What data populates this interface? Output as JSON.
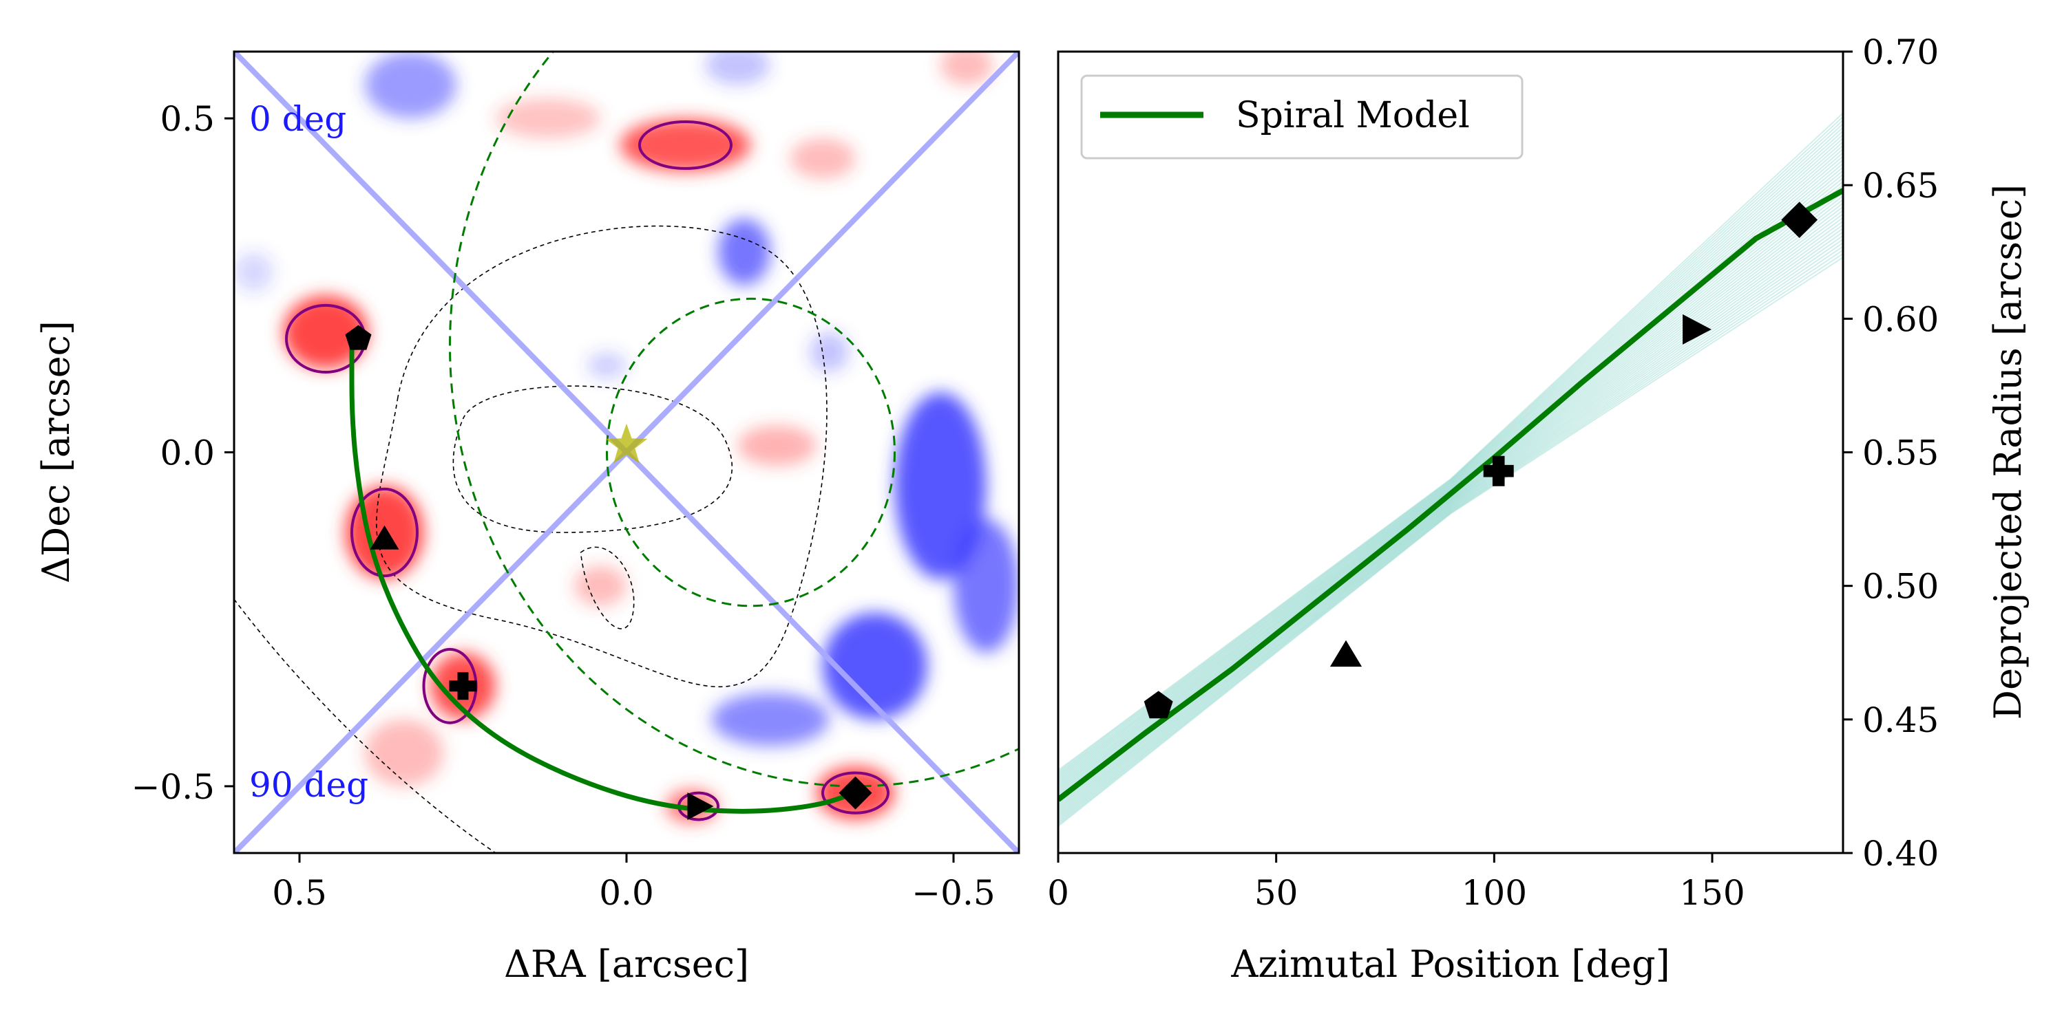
{
  "chart_data": [
    {
      "type": "image",
      "xlabel": "ΔRA [arcsec]",
      "ylabel": "ΔDec [arcsec]",
      "xlim": [
        0.6,
        -0.6
      ],
      "ylim": [
        -0.6,
        0.6
      ],
      "x_ticks": [
        {
          "v": 0.5,
          "label": "0.5"
        },
        {
          "v": 0.0,
          "label": "0.0"
        },
        {
          "v": -0.5,
          "label": "−0.5"
        }
      ],
      "y_ticks": [
        {
          "v": 0.5,
          "label": "0.5"
        },
        {
          "v": 0.0,
          "label": "0.0"
        },
        {
          "v": -0.5,
          "label": "−0.5"
        }
      ],
      "annotations": [
        {
          "text": "0 deg",
          "x": 0.58,
          "y": 0.48,
          "color": "#1a1aff"
        },
        {
          "text": "90 deg",
          "x": 0.58,
          "y": -0.52,
          "color": "#1a1aff"
        }
      ],
      "colors": {
        "positive": "#ff3b3b",
        "negative": "#3a3aff",
        "spiral": "#007d00",
        "ellipse": "#007d00",
        "contour": "#800080",
        "axis_lines": "#a8a8ff",
        "star": "#b5b500"
      },
      "star": {
        "x": 0.0,
        "y": 0.01
      },
      "diagonal_lines": [
        {
          "x1": 0.6,
          "y1": 0.6,
          "x2": -0.6,
          "y2": -0.6
        },
        {
          "x1": 0.6,
          "y1": -0.6,
          "x2": -0.6,
          "y2": 0.6
        }
      ],
      "positive_blobs": [
        {
          "x": 0.46,
          "y": 0.18,
          "rx": 0.065,
          "ry": 0.055,
          "a": 0.95
        },
        {
          "x": 0.37,
          "y": -0.12,
          "rx": 0.06,
          "ry": 0.07,
          "a": 0.95
        },
        {
          "x": 0.25,
          "y": -0.35,
          "rx": 0.05,
          "ry": 0.05,
          "a": 0.9
        },
        {
          "x": -0.09,
          "y": 0.46,
          "rx": 0.1,
          "ry": 0.04,
          "a": 0.85
        },
        {
          "x": -0.35,
          "y": -0.51,
          "rx": 0.06,
          "ry": 0.04,
          "a": 0.9
        },
        {
          "x": -0.1,
          "y": -0.53,
          "rx": 0.04,
          "ry": 0.025,
          "a": 0.7
        },
        {
          "x": 0.04,
          "y": -0.2,
          "rx": 0.04,
          "ry": 0.03,
          "a": 0.35
        },
        {
          "x": -0.23,
          "y": 0.01,
          "rx": 0.06,
          "ry": 0.03,
          "a": 0.4
        },
        {
          "x": -0.3,
          "y": 0.44,
          "rx": 0.05,
          "ry": 0.03,
          "a": 0.35
        },
        {
          "x": 0.12,
          "y": 0.5,
          "rx": 0.08,
          "ry": 0.03,
          "a": 0.3
        },
        {
          "x": -0.52,
          "y": 0.58,
          "rx": 0.04,
          "ry": 0.03,
          "a": 0.35
        },
        {
          "x": 0.34,
          "y": -0.45,
          "rx": 0.06,
          "ry": 0.05,
          "a": 0.35
        }
      ],
      "negative_blobs": [
        {
          "x": -0.48,
          "y": -0.05,
          "rx": 0.07,
          "ry": 0.14,
          "a": 0.85
        },
        {
          "x": -0.38,
          "y": -0.32,
          "rx": 0.08,
          "ry": 0.08,
          "a": 0.85
        },
        {
          "x": -0.22,
          "y": -0.4,
          "rx": 0.09,
          "ry": 0.04,
          "a": 0.6
        },
        {
          "x": -0.18,
          "y": 0.3,
          "rx": 0.04,
          "ry": 0.05,
          "a": 0.7
        },
        {
          "x": 0.33,
          "y": 0.55,
          "rx": 0.07,
          "ry": 0.05,
          "a": 0.5
        },
        {
          "x": -0.17,
          "y": 0.58,
          "rx": 0.05,
          "ry": 0.03,
          "a": 0.3
        },
        {
          "x": -0.55,
          "y": -0.2,
          "rx": 0.05,
          "ry": 0.1,
          "a": 0.7
        },
        {
          "x": -0.31,
          "y": 0.15,
          "rx": 0.03,
          "ry": 0.03,
          "a": 0.3
        },
        {
          "x": 0.57,
          "y": 0.27,
          "rx": 0.03,
          "ry": 0.03,
          "a": 0.2
        },
        {
          "x": 0.03,
          "y": 0.13,
          "rx": 0.03,
          "ry": 0.02,
          "a": 0.25
        }
      ],
      "purple_contours": [
        {
          "x": 0.46,
          "y": 0.17,
          "rx": 0.06,
          "ry": 0.05
        },
        {
          "x": 0.37,
          "y": -0.12,
          "rx": 0.05,
          "ry": 0.065
        },
        {
          "x": 0.27,
          "y": -0.35,
          "rx": 0.04,
          "ry": 0.055
        },
        {
          "x": -0.09,
          "y": 0.46,
          "rx": 0.07,
          "ry": 0.035
        },
        {
          "x": -0.35,
          "y": -0.51,
          "rx": 0.05,
          "ry": 0.03
        },
        {
          "x": -0.11,
          "y": -0.53,
          "rx": 0.03,
          "ry": 0.02
        }
      ],
      "dashed_ellipses": [
        {
          "cx": -0.19,
          "cy": 0.0,
          "rx": 0.22,
          "ry": 0.23
        },
        {
          "cx": -0.35,
          "cy": 0.16,
          "rx": 0.62,
          "ry": 0.66
        }
      ],
      "spiral": [
        [
          0.42,
          0.16
        ],
        [
          0.42,
          0.05
        ],
        [
          0.41,
          -0.05
        ],
        [
          0.39,
          -0.15
        ],
        [
          0.35,
          -0.25
        ],
        [
          0.29,
          -0.35
        ],
        [
          0.2,
          -0.43
        ],
        [
          0.08,
          -0.49
        ],
        [
          -0.05,
          -0.53
        ],
        [
          -0.18,
          -0.54
        ],
        [
          -0.29,
          -0.53
        ],
        [
          -0.35,
          -0.51
        ]
      ],
      "markers": [
        {
          "shape": "pentagon",
          "x": 0.41,
          "y": 0.17
        },
        {
          "shape": "triangle-up",
          "x": 0.37,
          "y": -0.13
        },
        {
          "shape": "plus",
          "x": 0.25,
          "y": -0.35
        },
        {
          "shape": "triangle-right",
          "x": -0.11,
          "y": -0.53
        },
        {
          "shape": "diamond",
          "x": -0.35,
          "y": -0.51
        }
      ]
    },
    {
      "type": "line",
      "xlabel": "Azimutal Position [deg]",
      "ylabel": "Deprojected Radius [arcsec]",
      "xlim": [
        0,
        180
      ],
      "ylim": [
        0.4,
        0.7
      ],
      "x_ticks": [
        {
          "v": 0,
          "label": "0"
        },
        {
          "v": 50,
          "label": "50"
        },
        {
          "v": 100,
          "label": "100"
        },
        {
          "v": 150,
          "label": "150"
        }
      ],
      "y_ticks": [
        {
          "v": 0.4,
          "label": "0.40"
        },
        {
          "v": 0.45,
          "label": "0.45"
        },
        {
          "v": 0.5,
          "label": "0.50"
        },
        {
          "v": 0.55,
          "label": "0.55"
        },
        {
          "v": 0.6,
          "label": "0.60"
        },
        {
          "v": 0.65,
          "label": "0.65"
        },
        {
          "v": 0.7,
          "label": "0.70"
        }
      ],
      "y_axis_side": "right",
      "legend": {
        "location": "upper-left",
        "entries": [
          {
            "label": "Spiral Model",
            "color": "#007d00"
          }
        ]
      },
      "series": [
        {
          "name": "Spiral Model",
          "color": "#007d00",
          "x": [
            0,
            20,
            40,
            60,
            80,
            100,
            120,
            140,
            160,
            180
          ],
          "y": [
            0.42,
            0.445,
            0.469,
            0.495,
            0.521,
            0.548,
            0.576,
            0.603,
            0.63,
            0.648
          ]
        }
      ],
      "posterior_band": {
        "color": "#2ab3a0",
        "x": [
          0,
          90,
          180
        ],
        "lower": [
          0.41,
          0.527,
          0.623
        ],
        "upper": [
          0.431,
          0.54,
          0.677
        ]
      },
      "points": [
        {
          "shape": "pentagon",
          "x": 23,
          "y": 0.455
        },
        {
          "shape": "triangle-up",
          "x": 66,
          "y": 0.474
        },
        {
          "shape": "plus",
          "x": 101,
          "y": 0.543
        },
        {
          "shape": "triangle-right",
          "x": 146,
          "y": 0.596
        },
        {
          "shape": "diamond",
          "x": 170,
          "y": 0.637
        }
      ]
    }
  ]
}
